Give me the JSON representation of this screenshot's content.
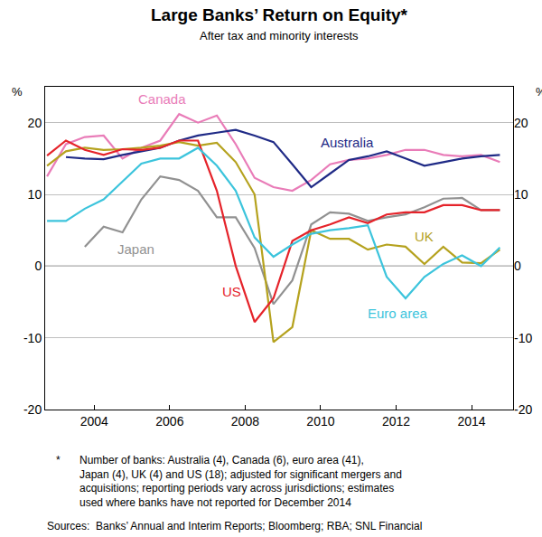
{
  "chart_data": {
    "type": "line",
    "title": "Large Banks’ Return on Equity*",
    "subtitle": "After tax and minority interests",
    "y_label": "%",
    "x": [
      2002.75,
      2003.25,
      2003.75,
      2004.25,
      2004.75,
      2005.25,
      2005.75,
      2006.25,
      2006.75,
      2007.25,
      2007.75,
      2008.25,
      2008.75,
      2009.25,
      2009.75,
      2010.25,
      2010.75,
      2011.25,
      2011.75,
      2012.25,
      2012.75,
      2013.25,
      2013.75,
      2014.25,
      2014.75
    ],
    "series": [
      {
        "name": "Canada",
        "color": "#e97cb8",
        "values": [
          12.5,
          17,
          18,
          18.2,
          15,
          16.5,
          17.5,
          21.2,
          20,
          21,
          17,
          12.3,
          11,
          10.5,
          12,
          14.2,
          14.8,
          15,
          15.5,
          16.2,
          16.2,
          15.5,
          15.3,
          15.5,
          14.5
        ]
      },
      {
        "name": "Australia",
        "color": "#1f2a86",
        "values": [
          null,
          15.2,
          15,
          14.9,
          15.5,
          16,
          16.5,
          17.5,
          18.2,
          18.6,
          19,
          18.2,
          17.3,
          14.2,
          11,
          12.9,
          14.8,
          15.3,
          16,
          15,
          14,
          14.5,
          15,
          15.3,
          15.5
        ]
      },
      {
        "name": "Japan",
        "color": "#919191",
        "values": [
          null,
          null,
          2.7,
          5.5,
          4.7,
          9.3,
          12.5,
          12,
          10.5,
          6.8,
          6.8,
          2.5,
          -5.3,
          -2,
          5.8,
          7.5,
          7.3,
          6.3,
          6.8,
          7.2,
          8.2,
          9.4,
          9.5,
          7.8,
          7.8
        ]
      },
      {
        "name": "UK",
        "color": "#b5a21e",
        "values": [
          14,
          16,
          16.5,
          16.2,
          16.3,
          16.5,
          16.8,
          17.3,
          16.8,
          17.2,
          14.5,
          10,
          -10.6,
          -8.5,
          5,
          3.8,
          3.8,
          2.3,
          3,
          2.7,
          0.3,
          2.7,
          0.5,
          0.4,
          2.3
        ]
      },
      {
        "name": "US",
        "color": "#e5232a",
        "values": [
          15.4,
          17.5,
          16.2,
          15.5,
          16.3,
          16.2,
          16.5,
          17.5,
          17.5,
          10.5,
          0,
          -7.8,
          -4.5,
          3.5,
          5,
          5.8,
          6.8,
          6,
          7.2,
          7.5,
          7.5,
          8.5,
          8.5,
          7.8,
          7.8
        ]
      },
      {
        "name": "Euro area",
        "color": "#3cc4dc",
        "values": [
          6.3,
          6.3,
          8,
          9.3,
          11.8,
          14.3,
          15,
          15,
          16.5,
          14,
          10.5,
          4,
          1.3,
          3,
          4.5,
          5,
          5.3,
          5.7,
          -1.5,
          -4.5,
          -1.5,
          0.3,
          1.5,
          0,
          2.6
        ]
      }
    ],
    "xlim": [
      2002.7,
      2015.1
    ],
    "xticks": [
      2004,
      2006,
      2008,
      2010,
      2012,
      2014
    ],
    "ylim": [
      -20,
      25
    ],
    "yticks": [
      -20,
      -10,
      0,
      10,
      20
    ],
    "grid": true,
    "footnote": {
      "marker": "*",
      "lines": [
        "Number of banks: Australia (4), Canada (6), euro area (41),",
        "Japan (4), UK (4) and US (18); adjusted for significant mergers and",
        "acquisitions; reporting periods vary across jurisdictions; estimates",
        "used where banks have not reported for December 2014"
      ]
    },
    "source": "Sources:  Banks’ Annual and Interim Reports; Bloomberg; RBA; SNL Financial"
  }
}
